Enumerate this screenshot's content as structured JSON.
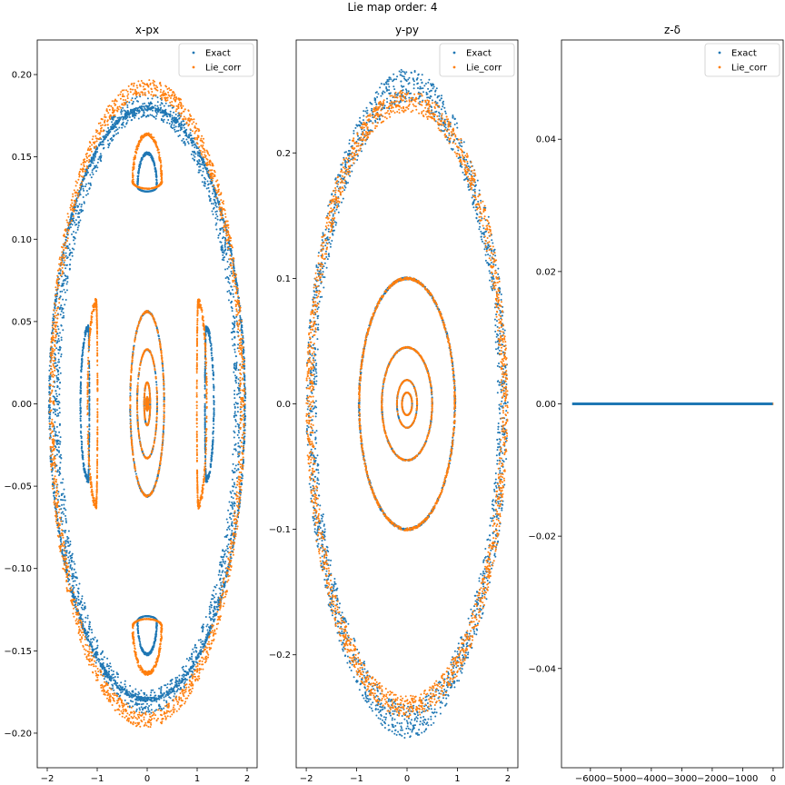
{
  "suptitle": "Lie map order: 4",
  "colors": {
    "exact": "#1f77b4",
    "lie_corr": "#ff7f0e"
  },
  "chart_data": [
    {
      "type": "scatter",
      "title": "x-px",
      "xlim": [
        -2.2,
        2.2
      ],
      "ylim": [
        -0.221,
        0.221
      ],
      "xticks": [
        -2,
        -1,
        0,
        1,
        2
      ],
      "xtick_labels": [
        "−2",
        "−1",
        "0",
        "1",
        "2"
      ],
      "yticks": [
        -0.2,
        -0.15,
        -0.1,
        -0.05,
        0.0,
        0.05,
        0.1,
        0.15,
        0.2
      ],
      "ytick_labels": [
        "−0.20",
        "−0.15",
        "−0.10",
        "−0.05",
        "0.00",
        "0.05",
        "0.10",
        "0.15",
        "0.20"
      ],
      "legend": {
        "placement": "top-right",
        "entries": [
          "Exact",
          "Lie_corr"
        ]
      },
      "series": [
        {
          "name": "Exact",
          "color": "#1f77b4",
          "curves": [
            {
              "kind": "ellipse",
              "cx": 0,
              "cy": 0,
              "a": 1.88,
              "b": 0.188,
              "thick_x": 0.14
            },
            {
              "kind": "ellipse",
              "cx": 0,
              "cy": 0,
              "a": 1.97,
              "b": 0.181,
              "thick_x": 0.03
            },
            {
              "kind": "ellipse",
              "cx": 0,
              "cy": 0,
              "a": 0.34,
              "b": 0.056
            },
            {
              "kind": "ellipse",
              "cx": 0,
              "cy": 0,
              "a": 0.2,
              "b": 0.033
            },
            {
              "kind": "ellipse",
              "cx": 0,
              "cy": 0,
              "a": 0.06,
              "b": 0.013
            },
            {
              "kind": "ellipse",
              "cx": 0,
              "cy": 0,
              "a": 0.02,
              "b": 0.004
            },
            {
              "kind": "island",
              "cx": -1.18,
              "cy": 0,
              "dir": -1,
              "width": 0.32,
              "halfh": 0.048
            },
            {
              "kind": "island",
              "cx": 1.18,
              "cy": 0,
              "dir": 1,
              "width": 0.32,
              "halfh": 0.048
            },
            {
              "kind": "island",
              "cx": 0,
              "cy": 0.132,
              "dir": 1,
              "width": 0.4,
              "halfh": 0.021,
              "vertical": true
            },
            {
              "kind": "island",
              "cx": 0,
              "cy": -0.132,
              "dir": -1,
              "width": 0.4,
              "halfh": 0.021,
              "vertical": true
            }
          ]
        },
        {
          "name": "Lie_corr",
          "color": "#ff7f0e",
          "curves": [
            {
              "kind": "ellipse",
              "cx": 0,
              "cy": 0,
              "a": 1.96,
              "b": 0.197,
              "thick_x": 0.1
            },
            {
              "kind": "ellipse",
              "cx": 0,
              "cy": 0,
              "a": 0.34,
              "b": 0.056
            },
            {
              "kind": "ellipse",
              "cx": 0,
              "cy": 0,
              "a": 0.2,
              "b": 0.033
            },
            {
              "kind": "ellipse",
              "cx": 0,
              "cy": 0,
              "a": 0.06,
              "b": 0.013
            },
            {
              "kind": "ellipse",
              "cx": 0,
              "cy": 0,
              "a": 0.02,
              "b": 0.004
            },
            {
              "kind": "island",
              "cx": -1.02,
              "cy": 0,
              "dir": -1,
              "width": 0.36,
              "halfh": 0.064
            },
            {
              "kind": "island",
              "cx": 1.02,
              "cy": 0,
              "dir": 1,
              "width": 0.36,
              "halfh": 0.064
            },
            {
              "kind": "island",
              "cx": 0,
              "cy": 0.135,
              "dir": 1,
              "width": 0.6,
              "halfh": 0.03,
              "vertical": true
            },
            {
              "kind": "island",
              "cx": 0,
              "cy": -0.135,
              "dir": -1,
              "width": 0.6,
              "halfh": 0.03,
              "vertical": true
            }
          ]
        }
      ]
    },
    {
      "type": "scatter",
      "title": "y-py",
      "xlim": [
        -2.2,
        2.2
      ],
      "ylim": [
        -0.29,
        0.29
      ],
      "xticks": [
        -2,
        -1,
        0,
        1,
        2
      ],
      "xtick_labels": [
        "−2",
        "−1",
        "0",
        "1",
        "2"
      ],
      "yticks": [
        -0.2,
        -0.1,
        0.0,
        0.1,
        0.2
      ],
      "ytick_labels": [
        "−0.2",
        "−0.1",
        "0.0",
        "0.1",
        "0.2"
      ],
      "legend": {
        "placement": "top-right",
        "entries": [
          "Exact",
          "Lie_corr"
        ]
      },
      "series": [
        {
          "name": "Exact",
          "color": "#1f77b4",
          "curves": [
            {
              "kind": "ellipse",
              "cx": 0,
              "cy": 0,
              "a": 2.0,
              "b": 0.255,
              "thick_x": 0.2,
              "bumps": 0.012
            },
            {
              "kind": "ellipse",
              "cx": 0,
              "cy": 0,
              "a": 0.95,
              "b": 0.1
            },
            {
              "kind": "ellipse",
              "cx": 0,
              "cy": 0,
              "a": 0.5,
              "b": 0.045
            },
            {
              "kind": "ellipse",
              "cx": 0,
              "cy": 0,
              "a": 0.2,
              "b": 0.019
            },
            {
              "kind": "ellipse",
              "cx": 0,
              "cy": 0,
              "a": 0.1,
              "b": 0.009
            }
          ]
        },
        {
          "name": "Lie_corr",
          "color": "#ff7f0e",
          "curves": [
            {
              "kind": "ellipse",
              "cx": 0,
              "cy": 0,
              "a": 2.0,
              "b": 0.25,
              "thick_x": 0.14
            },
            {
              "kind": "ellipse",
              "cx": 0,
              "cy": 0,
              "a": 0.95,
              "b": 0.1
            },
            {
              "kind": "ellipse",
              "cx": 0,
              "cy": 0,
              "a": 0.5,
              "b": 0.045
            },
            {
              "kind": "ellipse",
              "cx": 0,
              "cy": 0,
              "a": 0.2,
              "b": 0.019
            },
            {
              "kind": "ellipse",
              "cx": 0,
              "cy": 0,
              "a": 0.1,
              "b": 0.009
            }
          ]
        }
      ]
    },
    {
      "type": "scatter",
      "title": "z-δ",
      "xlim": [
        -6950,
        330
      ],
      "ylim": [
        -0.055,
        0.055
      ],
      "xticks": [
        -6000,
        -5000,
        -4000,
        -3000,
        -2000,
        -1000,
        0
      ],
      "xtick_labels": [
        "−6000",
        "−5000",
        "−4000",
        "−3000",
        "−2000",
        "−1000",
        "0"
      ],
      "yticks": [
        -0.04,
        -0.02,
        0.0,
        0.02,
        0.04
      ],
      "ytick_labels": [
        "−0.04",
        "−0.02",
        "0.00",
        "0.02",
        "0.04"
      ],
      "legend": {
        "placement": "top-right",
        "entries": [
          "Exact",
          "Lie_corr"
        ]
      },
      "series": [
        {
          "name": "Exact",
          "color": "#1f77b4",
          "curves": [
            {
              "kind": "hline",
              "x0": -6600,
              "x1": -10,
              "y": 0
            }
          ]
        },
        {
          "name": "Lie_corr",
          "color": "#ff7f0e",
          "curves": [
            {
              "kind": "hline",
              "x0": -10,
              "x1": 10,
              "y": 0
            }
          ]
        }
      ]
    }
  ]
}
